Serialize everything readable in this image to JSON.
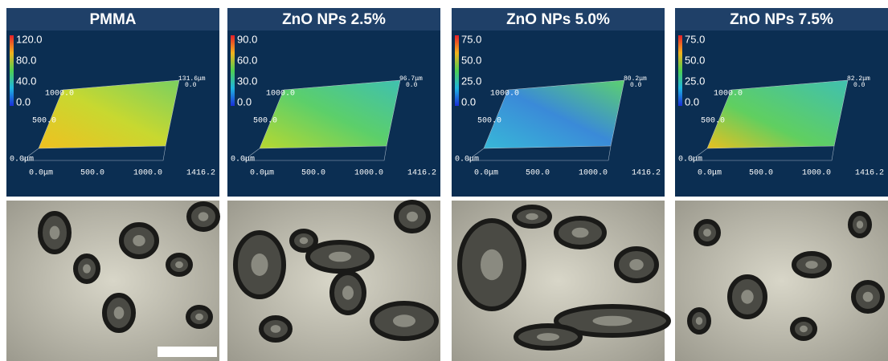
{
  "panels": [
    {
      "title": "PMMA",
      "scale": [
        "120.0",
        "80.0",
        "40.0",
        "0.0"
      ],
      "z_max": "131.6μm",
      "z_min": "0.0",
      "y_labels": [
        "1000.0",
        "500.0",
        "0.0μm"
      ],
      "x_labels": [
        "0.0μm",
        "500.0",
        "1000.0",
        "1416.2"
      ]
    },
    {
      "title": "ZnO NPs 2.5%",
      "scale": [
        "90.0",
        "60.0",
        "30.0",
        "0.0"
      ],
      "z_max": "96.7μm",
      "z_min": "0.0",
      "y_labels": [
        "1000.0",
        "500.0",
        "0.0μm"
      ],
      "x_labels": [
        "0.0μm",
        "500.0",
        "1000.0",
        "1416.2"
      ]
    },
    {
      "title": "ZnO NPs 5.0%",
      "scale": [
        "75.0",
        "50.0",
        "25.0",
        "0.0"
      ],
      "z_max": "80.2μm",
      "z_min": "0.0",
      "y_labels": [
        "1000.0",
        "500.0",
        "0.0μm"
      ],
      "x_labels": [
        "0.0μm",
        "500.0",
        "1000.0",
        "1416.2"
      ]
    },
    {
      "title": "ZnO NPs 7.5%",
      "scale": [
        "75.0",
        "50.0",
        "25.0",
        "0.0"
      ],
      "z_max": "82.2μm",
      "z_min": "0.0",
      "y_labels": [
        "1000.0",
        "500.0",
        "0.0μm"
      ],
      "x_labels": [
        "0.0μm",
        "500.0",
        "1000.0",
        "1416.2"
      ]
    }
  ]
}
